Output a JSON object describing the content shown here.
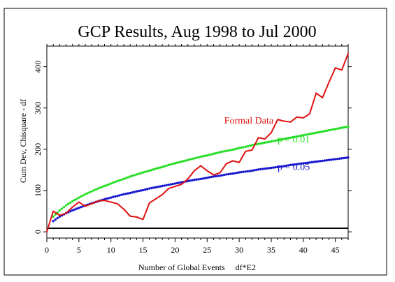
{
  "chart_data": {
    "type": "line",
    "title": "GCP Results, Aug 1998 to Jul 2000",
    "xlabel": "Number of Global Events     df*E2",
    "ylabel": "Cum Dev, Chisquare - df",
    "xlim": [
      0,
      47
    ],
    "ylim": [
      -15,
      450
    ],
    "x_ticks": [
      0,
      5,
      10,
      15,
      20,
      25,
      30,
      35,
      40,
      45
    ],
    "y_ticks": [
      0,
      100,
      200,
      300,
      400
    ],
    "grid": false,
    "series": [
      {
        "name": "Formal Data",
        "color": "#e01010",
        "style": "solid",
        "x": [
          0,
          1,
          2,
          3,
          4,
          5,
          6,
          7,
          8,
          9,
          10,
          11,
          12,
          13,
          14,
          15,
          16,
          17,
          18,
          19,
          20,
          21,
          22,
          23,
          24,
          25,
          26,
          27,
          28,
          29,
          30,
          31,
          32,
          33,
          34,
          35,
          36,
          37,
          38,
          39,
          40,
          41,
          42,
          43,
          44,
          45,
          46,
          47
        ],
        "values": [
          0,
          50,
          40,
          45,
          60,
          72,
          62,
          68,
          75,
          76,
          72,
          68,
          55,
          38,
          36,
          30,
          70,
          80,
          90,
          105,
          110,
          115,
          128,
          148,
          160,
          148,
          138,
          143,
          165,
          172,
          168,
          195,
          198,
          228,
          225,
          240,
          272,
          268,
          266,
          278,
          276,
          286,
          336,
          325,
          362,
          397,
          392,
          432
        ]
      },
      {
        "name": "p = 0.01",
        "color": "#22dd22",
        "style": "dotted",
        "x": [
          1,
          2,
          3,
          4,
          5,
          6,
          7,
          8,
          9,
          10,
          11,
          12,
          13,
          14,
          15,
          16,
          17,
          18,
          19,
          20,
          21,
          22,
          23,
          24,
          25,
          26,
          27,
          28,
          29,
          30,
          31,
          32,
          33,
          34,
          35,
          36,
          37,
          38,
          39,
          40,
          41,
          42,
          43,
          44,
          45,
          46,
          47
        ],
        "values": [
          37,
          52,
          64,
          74,
          83,
          91,
          98,
          105,
          111,
          117,
          123,
          128,
          134,
          139,
          144,
          148,
          153,
          157,
          162,
          166,
          170,
          174,
          178,
          182,
          185,
          189,
          193,
          196,
          199,
          203,
          206,
          210,
          213,
          216,
          219,
          222,
          225,
          228,
          231,
          234,
          237,
          240,
          243,
          246,
          249,
          252,
          255
        ]
      },
      {
        "name": "p = 0.05",
        "color": "#1515cc",
        "style": "dotted",
        "x": [
          1,
          2,
          3,
          4,
          5,
          6,
          7,
          8,
          9,
          10,
          11,
          12,
          13,
          14,
          15,
          16,
          17,
          18,
          19,
          20,
          21,
          22,
          23,
          24,
          25,
          26,
          27,
          28,
          29,
          30,
          31,
          32,
          33,
          34,
          35,
          36,
          37,
          38,
          39,
          40,
          41,
          42,
          43,
          44,
          45,
          46,
          47
        ],
        "values": [
          26,
          37,
          45,
          52,
          58,
          64,
          69,
          74,
          79,
          83,
          87,
          91,
          94,
          98,
          101,
          105,
          108,
          111,
          114,
          117,
          120,
          123,
          126,
          128,
          131,
          134,
          136,
          139,
          141,
          144,
          146,
          148,
          151,
          153,
          155,
          157,
          159,
          162,
          164,
          166,
          168,
          170,
          172,
          174,
          176,
          178,
          180
        ]
      }
    ],
    "annotations": [
      {
        "text": "Formal Data",
        "x": 31.5,
        "y": 262,
        "color": "#e01010"
      },
      {
        "text": "p = 0.01",
        "x": 38.5,
        "y": 217,
        "color": "#22dd22"
      },
      {
        "text": "p = 0.05",
        "x": 38.5,
        "y": 150,
        "color": "#1515cc"
      }
    ]
  }
}
